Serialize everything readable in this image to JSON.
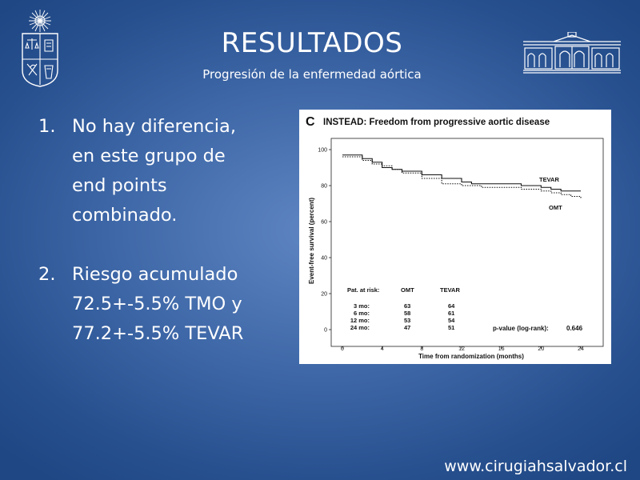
{
  "slide": {
    "title": "RESULTADOS",
    "subtitle": "Progresión de la enfermedad aórtica",
    "points": [
      {
        "num": "1.",
        "lines": [
          "No hay diferencia,",
          "en este grupo de",
          "end points",
          "combinado."
        ]
      },
      {
        "num": "2.",
        "lines": [
          "Riesgo acumulado",
          "72.5+-5.5% TMO y",
          "77.2+-5.5% TEVAR"
        ]
      }
    ],
    "footer": "www.cirugiahsalvador.cl"
  },
  "chart_data": {
    "type": "line",
    "panel_letter": "C",
    "title": "INSTEAD: Freedom from progressive aortic disease",
    "xlabel": "Time from randomization (months)",
    "ylabel": "Event-free survival (percent)",
    "xlim": [
      0,
      24
    ],
    "ylim": [
      0,
      100
    ],
    "x_ticks": [
      0,
      4,
      8,
      12,
      16,
      20,
      24
    ],
    "y_ticks": [
      0,
      20,
      40,
      60,
      80,
      100
    ],
    "series": [
      {
        "name": "TEVAR",
        "style": "solid",
        "x": [
          0,
          1,
          2,
          3,
          4,
          5,
          6,
          8,
          10,
          12,
          13,
          14,
          16,
          18,
          20,
          21,
          22,
          23,
          24
        ],
        "y": [
          97,
          97,
          95,
          93,
          90,
          89,
          88,
          86,
          84,
          82,
          81,
          81,
          81,
          80,
          79,
          78,
          77,
          77,
          77
        ]
      },
      {
        "name": "OMT",
        "style": "dotted",
        "x": [
          0,
          1,
          2,
          3,
          4,
          5,
          6,
          8,
          10,
          12,
          14,
          16,
          18,
          20,
          21,
          22,
          23,
          24
        ],
        "y": [
          96,
          96,
          94,
          92,
          91,
          89,
          87,
          84,
          81,
          80,
          79,
          79,
          78,
          77,
          76,
          75,
          74,
          73
        ]
      }
    ],
    "risk_table": {
      "header": [
        "Pat. at risk:",
        "OMT",
        "TEVAR"
      ],
      "rows": [
        [
          "3 mo:",
          "63",
          "64"
        ],
        [
          "6 mo:",
          "58",
          "61"
        ],
        [
          "12 mo:",
          "53",
          "54"
        ],
        [
          "24 mo:",
          "47",
          "51"
        ]
      ]
    },
    "pvalue_label": "p-value (log-rank):",
    "pvalue": "0.646"
  }
}
